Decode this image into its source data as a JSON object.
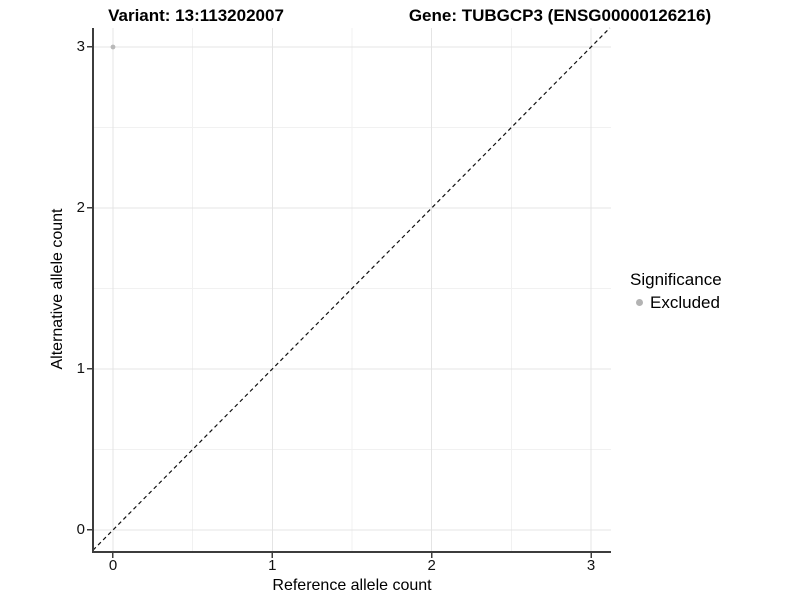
{
  "titles": {
    "variant": "Variant: 13:113202007",
    "gene": "Gene: TUBGCP3 (ENSG00000126216)"
  },
  "chart_data": {
    "type": "scatter",
    "xlabel": "Reference allele count",
    "ylabel": "Alternative allele count",
    "xlim": [
      -0.1255,
      3.1255
    ],
    "ylim": [
      -0.137,
      3.118
    ],
    "xticks": [
      0,
      1,
      2,
      3
    ],
    "yticks": [
      0,
      1,
      2,
      3
    ],
    "xminor": [
      0.5,
      1.5,
      2.5
    ],
    "yminor": [
      0.5,
      1.5,
      2.5
    ],
    "grid": "major-and-minor",
    "series": [
      {
        "name": "Excluded",
        "color": "#b9b9b9",
        "points": [
          {
            "x": 0,
            "y": 3
          }
        ]
      }
    ],
    "reference_line": {
      "kind": "identity",
      "linestyle": "dashed",
      "color": "#111111"
    },
    "legend": {
      "title": "Significance",
      "position": "right",
      "entries": [
        {
          "label": "Excluded",
          "color": "#b3b3b3"
        }
      ]
    }
  },
  "colors": {
    "background": "#ffffff",
    "grid_major": "#e4e4e4",
    "grid_minor": "#f1f1f1",
    "axis": "#3c3c3c",
    "tick": "#3c3c3c",
    "point": "#b9b9b9",
    "reference_line": "#111111"
  }
}
